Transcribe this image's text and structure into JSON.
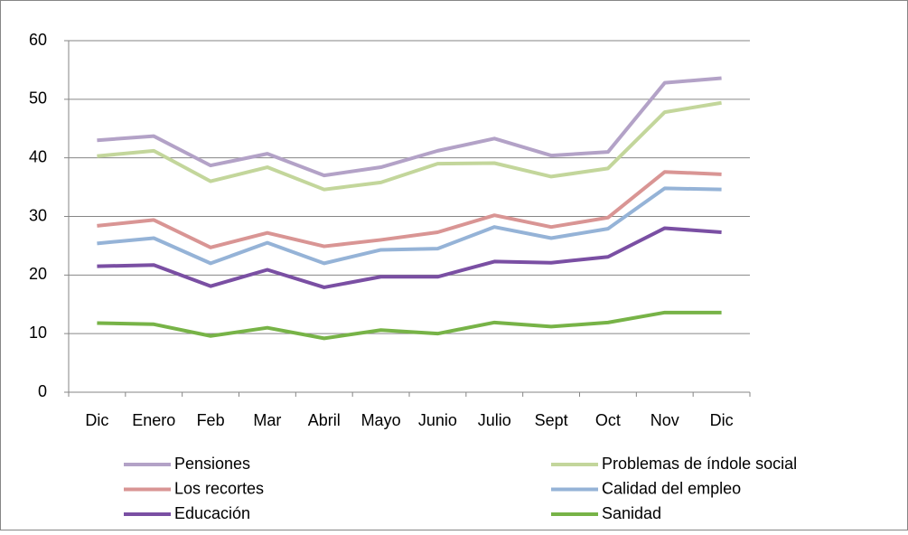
{
  "chart_data": {
    "type": "line",
    "categories": [
      "Dic",
      "Enero",
      "Feb",
      "Mar",
      "Abril",
      "Mayo",
      "Junio",
      "Julio",
      "Sept",
      "Oct",
      "Nov",
      "Dic"
    ],
    "ylim": [
      0,
      60
    ],
    "yticks": [
      0,
      10,
      20,
      30,
      40,
      50,
      60
    ],
    "grid": true,
    "series": [
      {
        "name": "Pensiones",
        "color": "#b3a2c7",
        "values": [
          43,
          43.7,
          38.7,
          40.7,
          37,
          38.4,
          41.2,
          43.3,
          40.4,
          41,
          52.8,
          53.6
        ]
      },
      {
        "name": "Problemas de índole social",
        "color": "#c3d69b",
        "values": [
          40.3,
          41.2,
          36,
          38.4,
          34.6,
          35.8,
          39,
          39.1,
          36.8,
          38.2,
          47.8,
          49.4
        ]
      },
      {
        "name": "Los recortes",
        "color": "#d99594",
        "values": [
          28.4,
          29.4,
          24.7,
          27.2,
          24.9,
          26,
          27.3,
          30.2,
          28.2,
          29.8,
          37.6,
          37.2
        ]
      },
      {
        "name": "Calidad del empleo",
        "color": "#95b3d7",
        "values": [
          25.4,
          26.3,
          22,
          25.5,
          22,
          24.3,
          24.5,
          28.2,
          26.3,
          27.9,
          34.8,
          34.6
        ]
      },
      {
        "name": "Educación",
        "color": "#7a4fa3",
        "values": [
          21.5,
          21.7,
          18.1,
          20.9,
          17.9,
          19.7,
          19.7,
          22.3,
          22.1,
          23.1,
          28,
          27.3
        ]
      },
      {
        "name": "Sanidad",
        "color": "#77b347",
        "values": [
          11.8,
          11.6,
          9.6,
          11,
          9.2,
          10.6,
          10,
          11.9,
          11.2,
          11.9,
          13.6,
          13.6
        ]
      }
    ]
  }
}
